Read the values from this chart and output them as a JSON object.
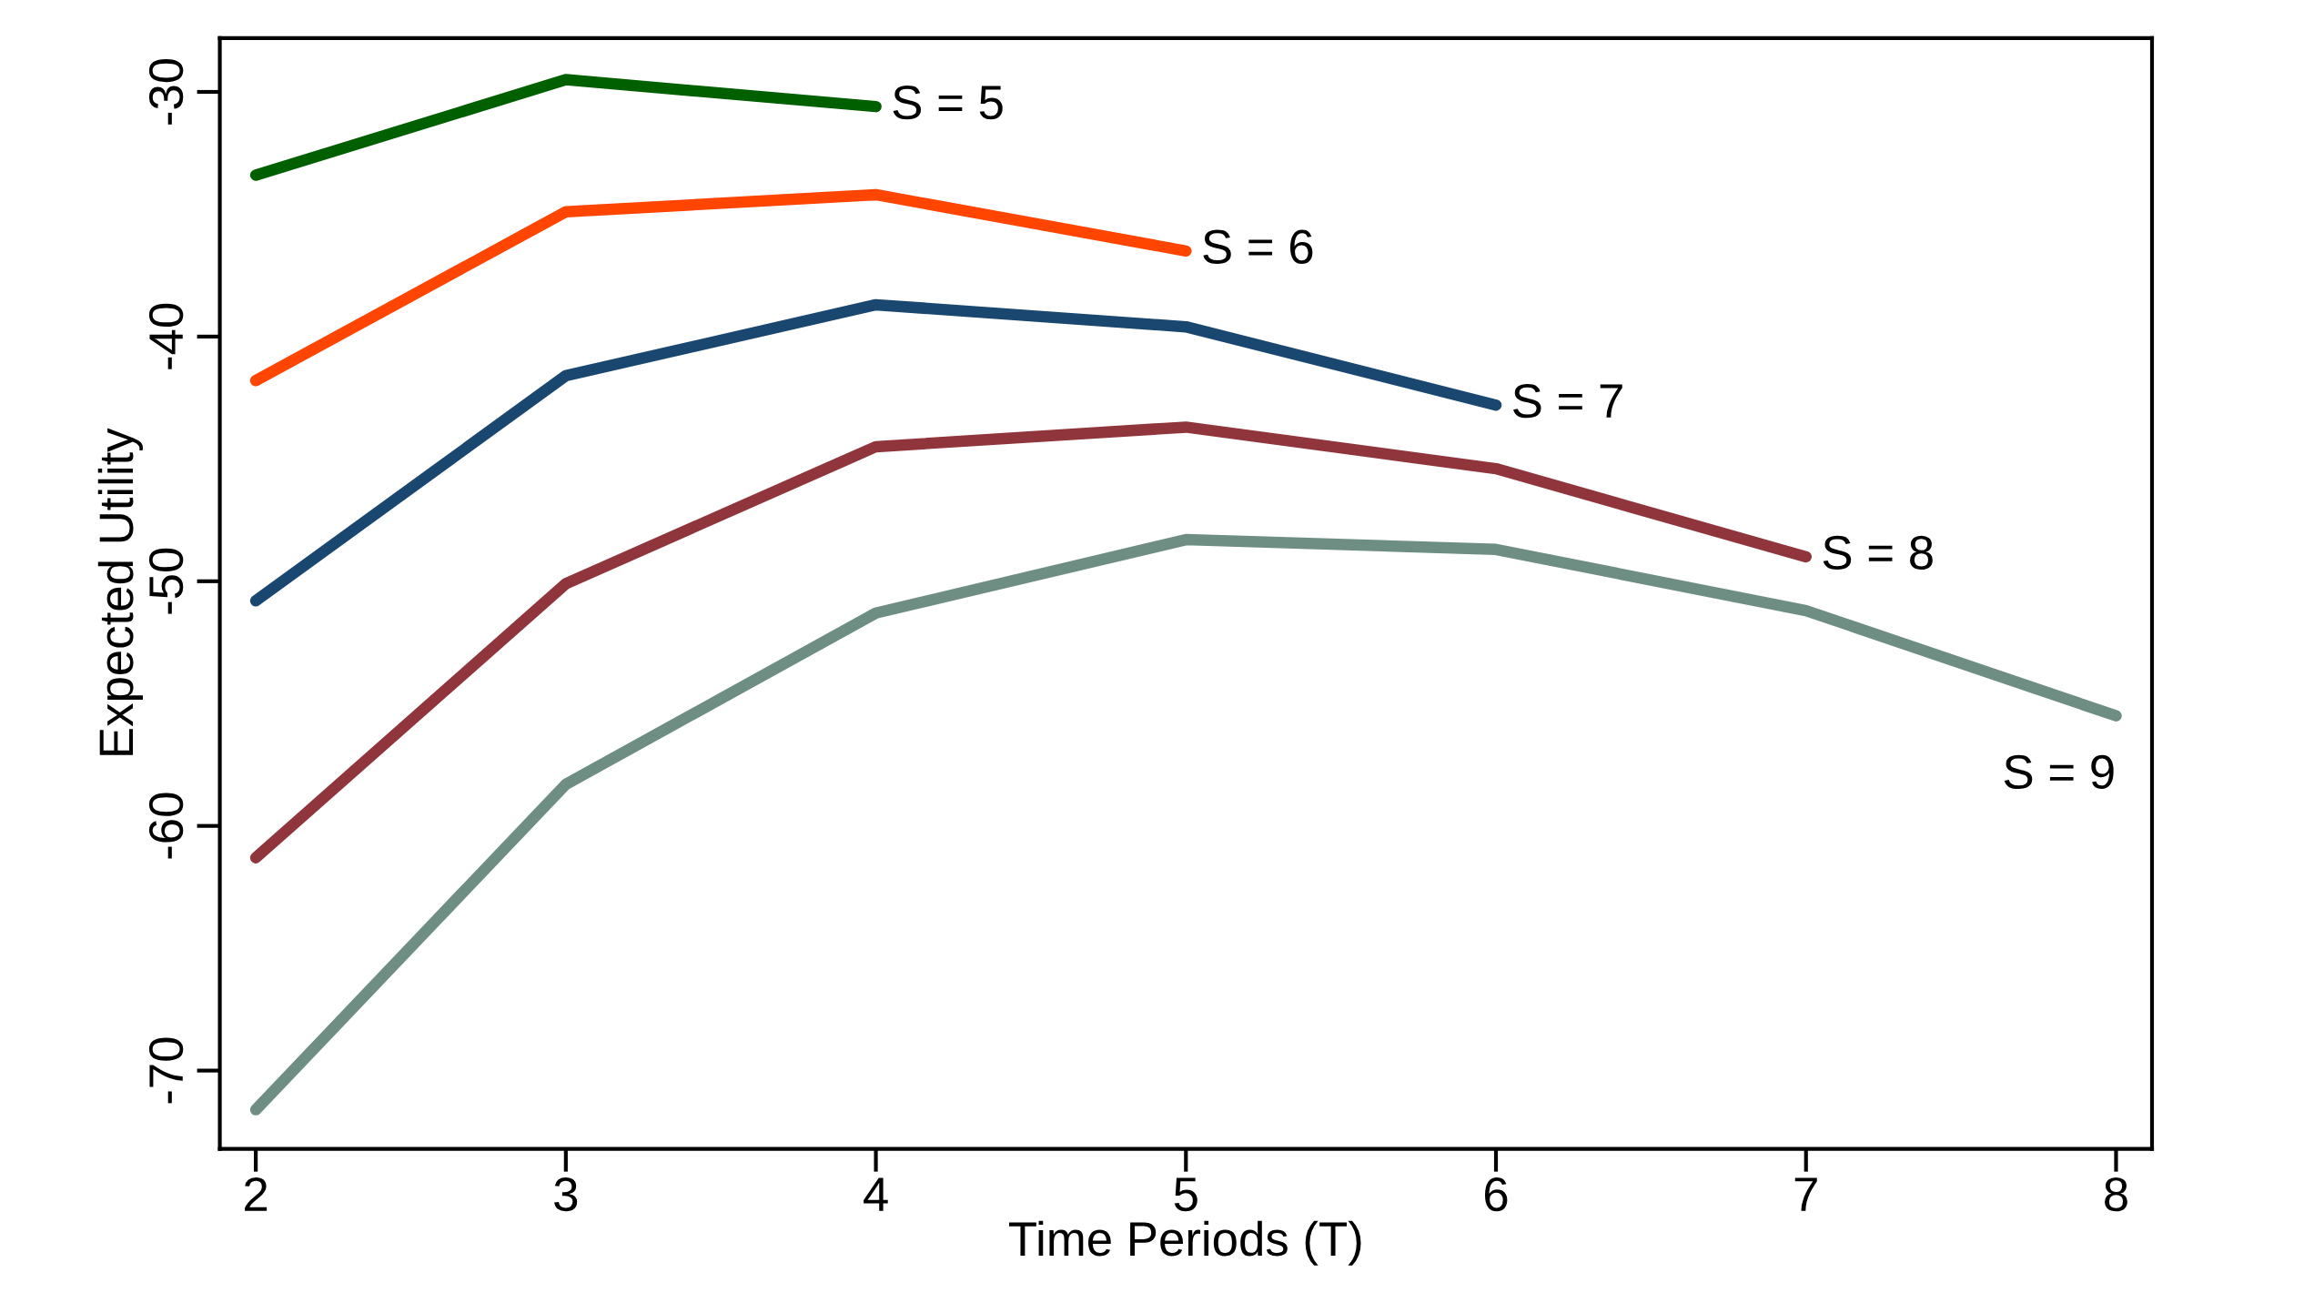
{
  "chart_data": {
    "type": "line",
    "xlabel": "Time Periods (T)",
    "ylabel": "Expected Utility",
    "xlim": [
      1.884,
      8.116
    ],
    "xticks": [
      2,
      3,
      4,
      5,
      6,
      7,
      8
    ],
    "ylim": [
      -73.2,
      -27.8
    ],
    "yticks": [
      -30,
      -40,
      -50,
      -60,
      -70
    ],
    "grid": false,
    "legend": false,
    "line_style": "solid",
    "series": [
      {
        "name": "S = 5",
        "color": "#006000",
        "x": [
          2,
          3,
          4
        ],
        "values": [
          -33.4,
          -29.5,
          -30.6
        ]
      },
      {
        "name": "S = 6",
        "color": "#ff4500",
        "x": [
          2,
          3,
          4,
          5
        ],
        "values": [
          -41.8,
          -34.9,
          -34.2,
          -36.5
        ]
      },
      {
        "name": "S = 7",
        "color": "#1a476f",
        "x": [
          2,
          3,
          4,
          5,
          6
        ],
        "values": [
          -50.8,
          -41.6,
          -38.7,
          -39.6,
          -42.8
        ]
      },
      {
        "name": "S = 8",
        "color": "#90353b",
        "x": [
          2,
          3,
          4,
          5,
          6,
          7
        ],
        "values": [
          -61.3,
          -50.1,
          -44.5,
          -43.7,
          -45.4,
          -49.0
        ]
      },
      {
        "name": "S = 9",
        "color": "#6e8e84",
        "x": [
          2,
          3,
          4,
          5,
          6,
          7,
          8
        ],
        "values": [
          -71.6,
          -58.3,
          -51.3,
          -48.3,
          -48.7,
          -51.2,
          -55.5
        ]
      }
    ]
  }
}
